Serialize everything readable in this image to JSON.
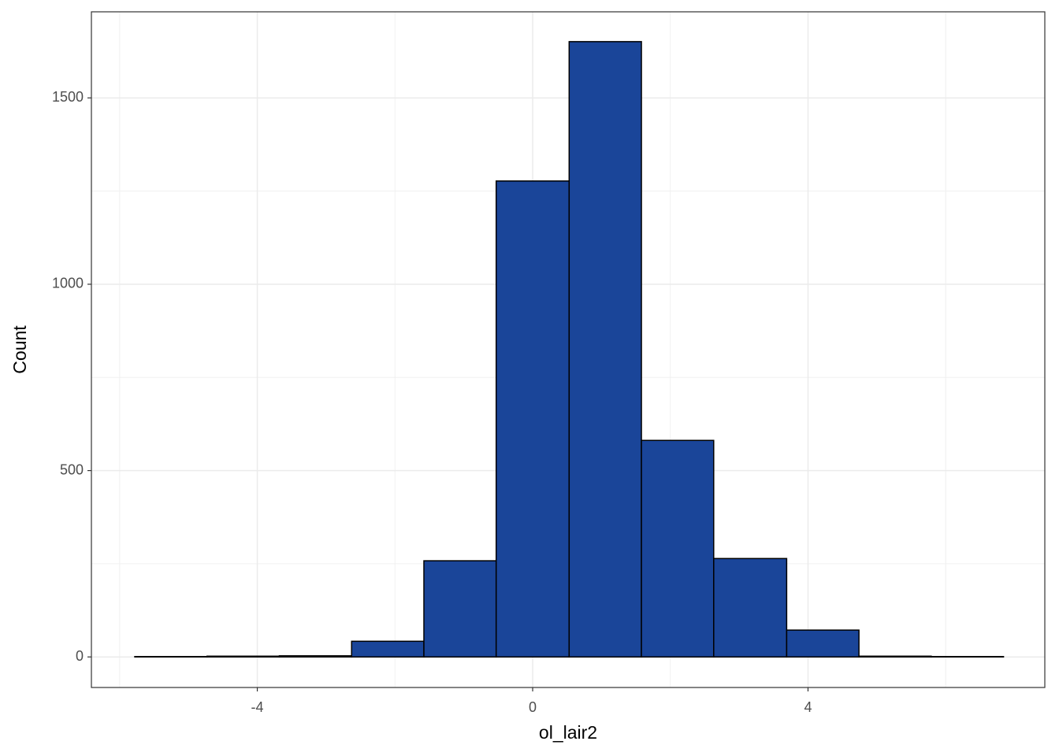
{
  "chart_data": {
    "type": "histogram",
    "x_label": "ol_lair2",
    "y_label": "Count",
    "bins": [
      -5.78,
      -4.73,
      -3.68,
      -2.63,
      -1.58,
      -0.53,
      0.53,
      1.58,
      2.63,
      3.69,
      4.74,
      5.79,
      6.84
    ],
    "values": [
      1,
      2,
      3,
      42,
      258,
      1277,
      1651,
      581,
      264,
      72,
      2,
      1
    ],
    "color": "#1a4599",
    "edge_color": "#000000",
    "xlim": [
      -6.41,
      7.44
    ],
    "ylim": [
      -82,
      1731
    ],
    "xticks": [
      -4,
      0,
      4
    ],
    "yticks": [
      0,
      500,
      1000,
      1500
    ],
    "grid": true
  }
}
